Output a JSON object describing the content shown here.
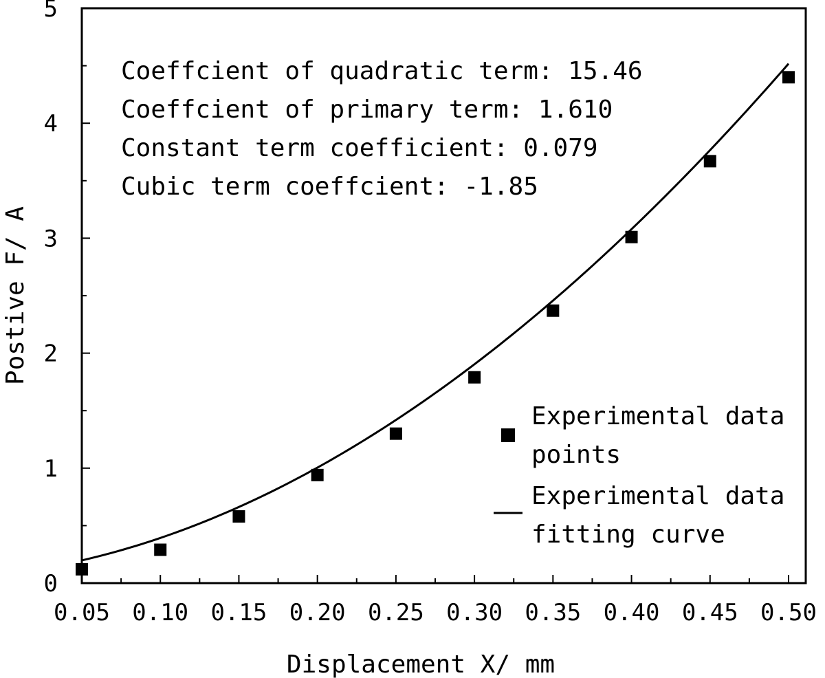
{
  "chart_data": {
    "type": "scatter",
    "xlabel": "Displacement X/ mm",
    "ylabel": "Postive F/ A",
    "xlim": [
      0.05,
      0.5
    ],
    "ylim": [
      0,
      5
    ],
    "x_ticks": [
      "0.05",
      "0.10",
      "0.15",
      "0.20",
      "0.25",
      "0.30",
      "0.35",
      "0.40",
      "0.45",
      "0.50"
    ],
    "y_ticks": [
      "0",
      "1",
      "2",
      "3",
      "4",
      "5"
    ],
    "annotations": [
      "Coeffcient of quadratic term: 15.46",
      "Coeffcient of primary term: 1.610",
      "Constant term coefficient: 0.079",
      "Cubic term coeffcient: -1.85"
    ],
    "legend_position": "right",
    "series": [
      {
        "name": "Experimental data points",
        "legend_lines": [
          "Experimental data",
          "points"
        ],
        "marker": "square",
        "x": [
          0.05,
          0.1,
          0.15,
          0.2,
          0.25,
          0.3,
          0.35,
          0.4,
          0.45,
          0.5
        ],
        "y": [
          0.12,
          0.29,
          0.58,
          0.94,
          1.3,
          1.79,
          2.37,
          3.01,
          3.67,
          4.4
        ]
      },
      {
        "name": "Experimental data fitting curve",
        "legend_lines": [
          "Experimental data",
          "fitting curve"
        ],
        "type": "line",
        "coefficients": {
          "cubic": -1.85,
          "quadratic": 15.46,
          "primary": 1.61,
          "constant": 0.079
        }
      }
    ],
    "colors": {
      "ink": "#000000",
      "background": "#ffffff"
    }
  }
}
